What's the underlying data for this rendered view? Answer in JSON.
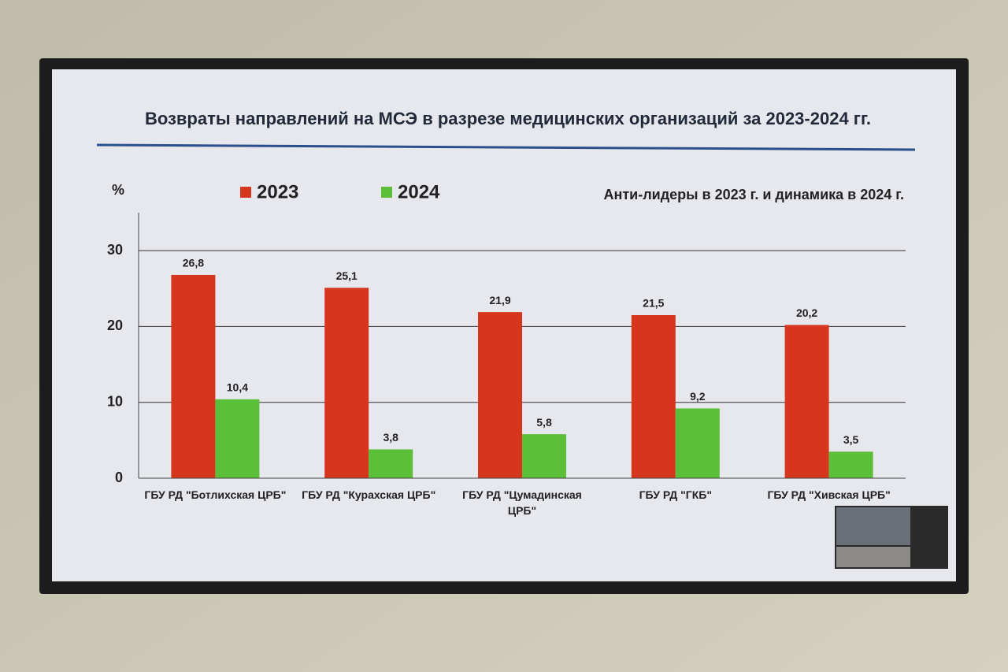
{
  "chart_data": {
    "type": "bar",
    "title": "Возвраты направлений на МСЭ в разрезе медицинских организаций за 2023-2024 гг.",
    "subtitle": "Анти-лидеры в 2023 г. и динамика в 2024 г.",
    "y_label": "%",
    "categories": [
      "ГБУ РД \"Ботлихская ЦРБ\"",
      "ГБУ РД \"Курахская ЦРБ\"",
      "ГБУ РД \"Цумадинская ЦРБ\"",
      "ГБУ РД \"ГКБ\"",
      "ГБУ РД \"Хивская ЦРБ\""
    ],
    "series": [
      {
        "name": "2023",
        "color": "#d6361b",
        "values": [
          26.8,
          25.1,
          21.9,
          21.5,
          20.2
        ],
        "value_labels": [
          "26,8",
          "25,1",
          "21,9",
          "21,5",
          "20,2"
        ]
      },
      {
        "name": "2024",
        "color": "#5bbf3a",
        "values": [
          10.4,
          3.8,
          5.8,
          9.2,
          3.5
        ],
        "value_labels": [
          "10,4",
          "3,8",
          "5,8",
          "9,2",
          "3,5"
        ]
      }
    ],
    "ylim": [
      0,
      35
    ],
    "yticks": [
      0,
      10,
      20,
      30
    ],
    "grid": true
  }
}
